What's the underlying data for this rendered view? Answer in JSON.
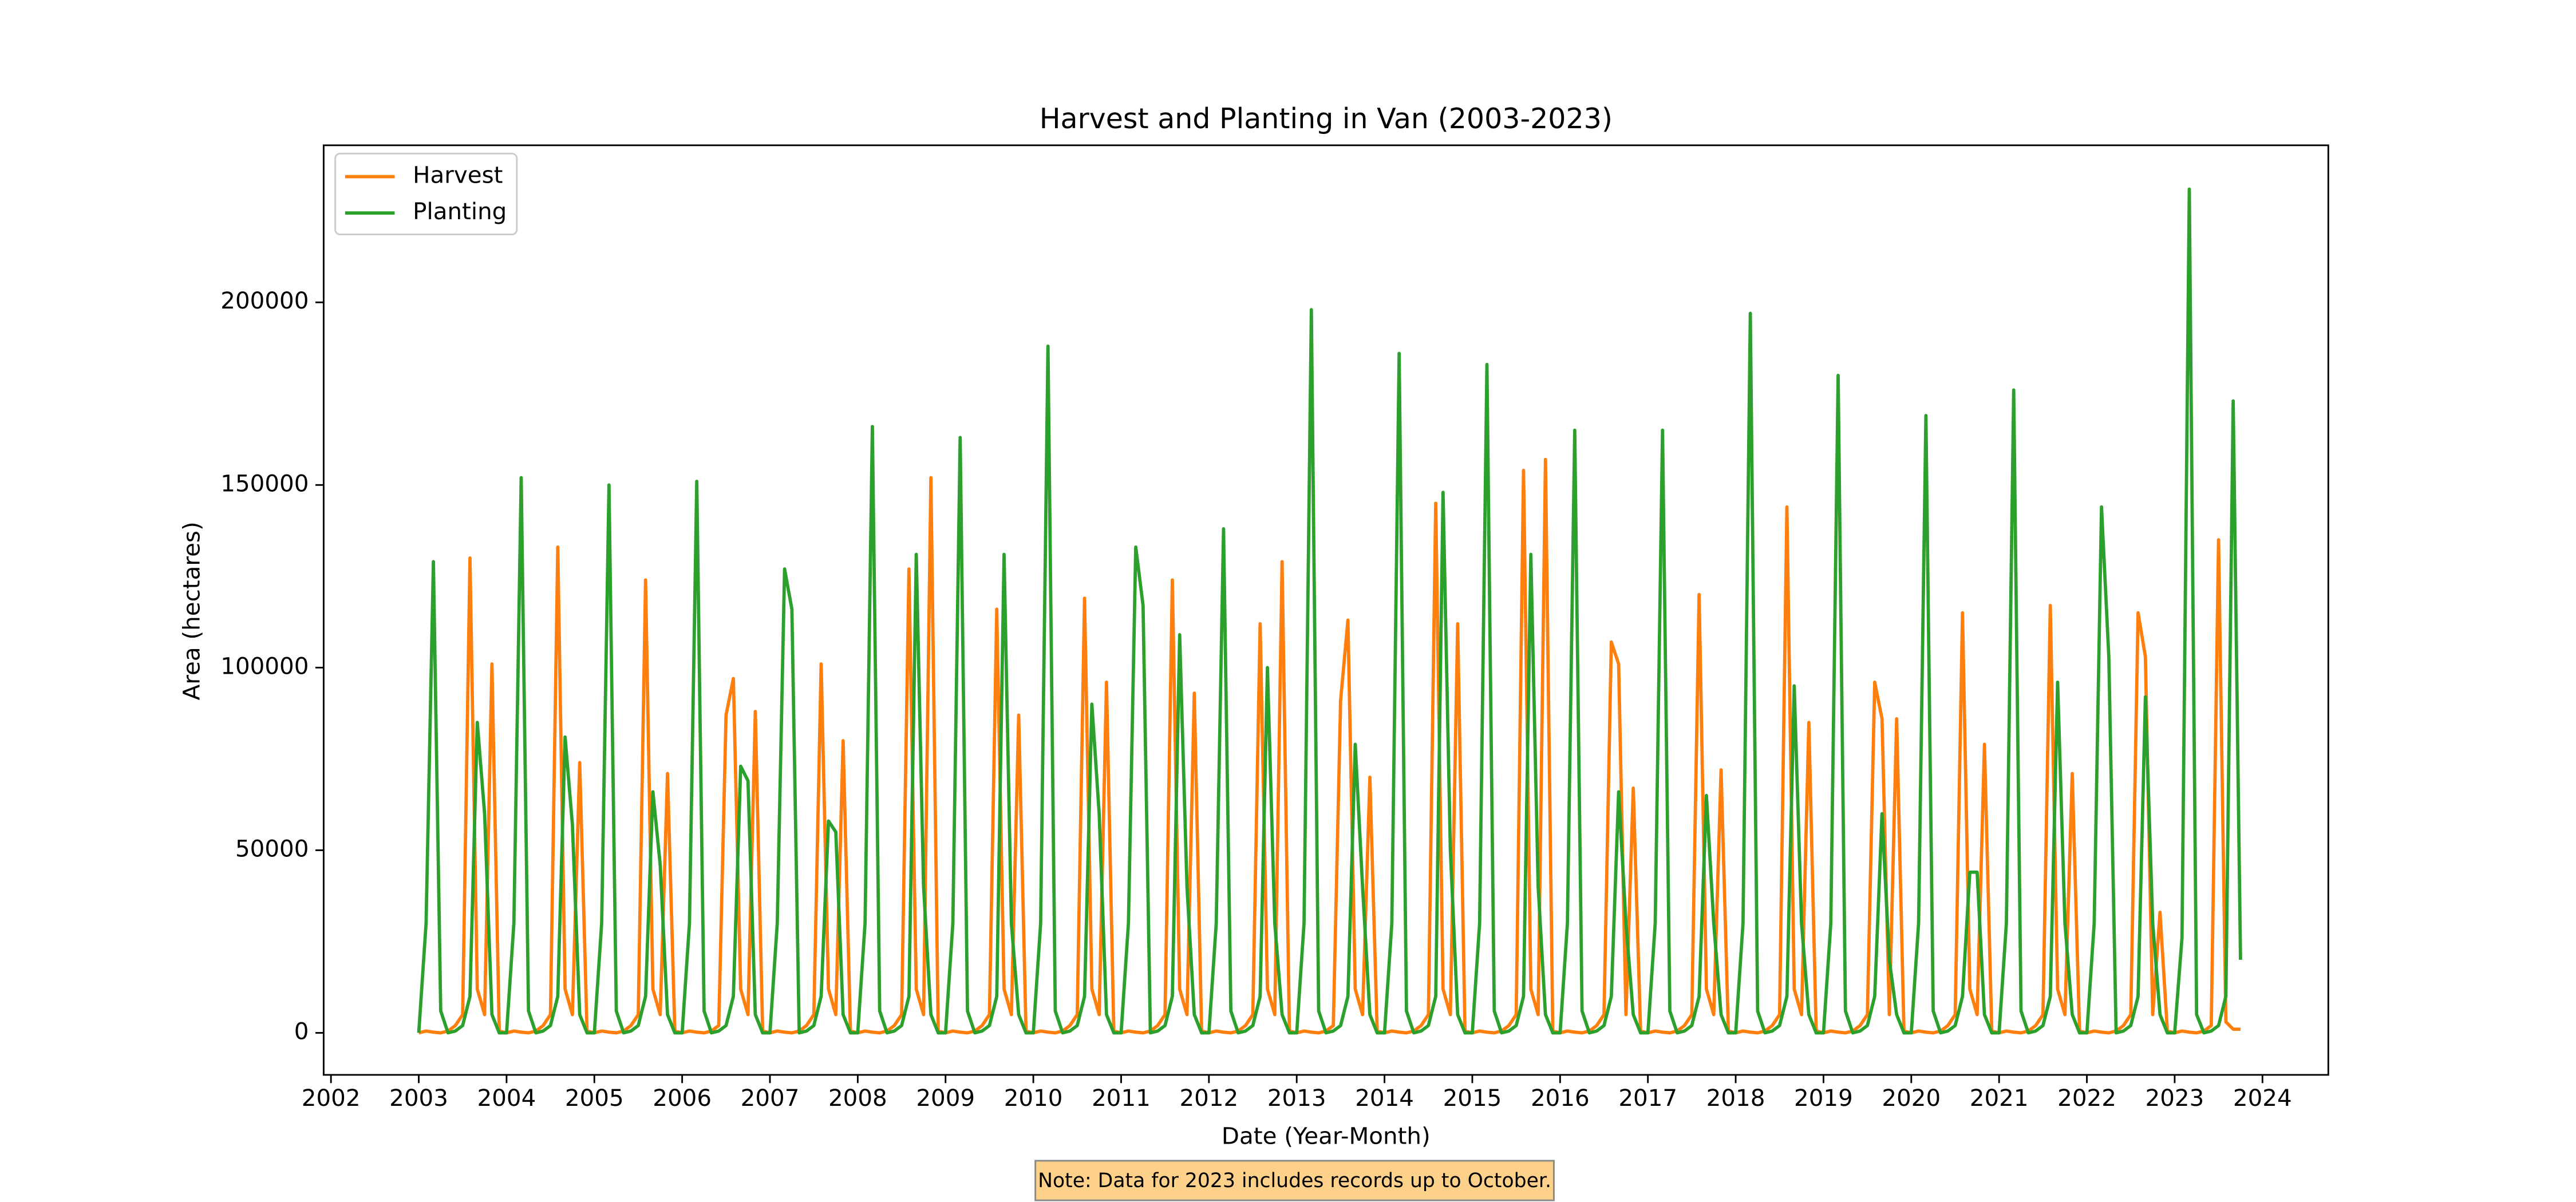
{
  "chart_data": {
    "type": "line",
    "title": "Harvest and Planting in Van (2003-2023)",
    "x_label": "Date (Year-Month)",
    "y_label": "Area (hectares)",
    "note": "Note: Data for 2023 includes records up to October.",
    "legend": "upper left",
    "xlim": [
      "2001-12",
      "2024-10"
    ],
    "xticks": [
      {
        "value": "2002-01",
        "label": "2002"
      },
      {
        "value": "2003-01",
        "label": "2003"
      },
      {
        "value": "2004-01",
        "label": "2004"
      },
      {
        "value": "2005-01",
        "label": "2005"
      },
      {
        "value": "2006-01",
        "label": "2006"
      },
      {
        "value": "2007-01",
        "label": "2007"
      },
      {
        "value": "2008-01",
        "label": "2008"
      },
      {
        "value": "2009-01",
        "label": "2009"
      },
      {
        "value": "2010-01",
        "label": "2010"
      },
      {
        "value": "2011-01",
        "label": "2011"
      },
      {
        "value": "2012-01",
        "label": "2012"
      },
      {
        "value": "2013-01",
        "label": "2013"
      },
      {
        "value": "2014-01",
        "label": "2014"
      },
      {
        "value": "2015-01",
        "label": "2015"
      },
      {
        "value": "2016-01",
        "label": "2016"
      },
      {
        "value": "2017-01",
        "label": "2017"
      },
      {
        "value": "2018-01",
        "label": "2018"
      },
      {
        "value": "2019-01",
        "label": "2019"
      },
      {
        "value": "2020-01",
        "label": "2020"
      },
      {
        "value": "2021-01",
        "label": "2021"
      },
      {
        "value": "2022-01",
        "label": "2022"
      },
      {
        "value": "2023-01",
        "label": "2023"
      },
      {
        "value": "2024-01",
        "label": "2024"
      }
    ],
    "ylim": [
      -11500,
      243000
    ],
    "yticks": [
      0,
      50000,
      100000,
      150000,
      200000
    ],
    "x": [
      "2003-01",
      "2003-02",
      "2003-03",
      "2003-04",
      "2003-05",
      "2003-06",
      "2003-07",
      "2003-08",
      "2003-09",
      "2003-10",
      "2003-11",
      "2003-12",
      "2004-01",
      "2004-02",
      "2004-03",
      "2004-04",
      "2004-05",
      "2004-06",
      "2004-07",
      "2004-08",
      "2004-09",
      "2004-10",
      "2004-11",
      "2004-12",
      "2005-01",
      "2005-02",
      "2005-03",
      "2005-04",
      "2005-05",
      "2005-06",
      "2005-07",
      "2005-08",
      "2005-09",
      "2005-10",
      "2005-11",
      "2005-12",
      "2006-01",
      "2006-02",
      "2006-03",
      "2006-04",
      "2006-05",
      "2006-06",
      "2006-07",
      "2006-08",
      "2006-09",
      "2006-10",
      "2006-11",
      "2006-12",
      "2007-01",
      "2007-02",
      "2007-03",
      "2007-04",
      "2007-05",
      "2007-06",
      "2007-07",
      "2007-08",
      "2007-09",
      "2007-10",
      "2007-11",
      "2007-12",
      "2008-01",
      "2008-02",
      "2008-03",
      "2008-04",
      "2008-05",
      "2008-06",
      "2008-07",
      "2008-08",
      "2008-09",
      "2008-10",
      "2008-11",
      "2008-12",
      "2009-01",
      "2009-02",
      "2009-03",
      "2009-04",
      "2009-05",
      "2009-06",
      "2009-07",
      "2009-08",
      "2009-09",
      "2009-10",
      "2009-11",
      "2009-12",
      "2010-01",
      "2010-02",
      "2010-03",
      "2010-04",
      "2010-05",
      "2010-06",
      "2010-07",
      "2010-08",
      "2010-09",
      "2010-10",
      "2010-11",
      "2010-12",
      "2011-01",
      "2011-02",
      "2011-03",
      "2011-04",
      "2011-05",
      "2011-06",
      "2011-07",
      "2011-08",
      "2011-09",
      "2011-10",
      "2011-11",
      "2011-12",
      "2012-01",
      "2012-02",
      "2012-03",
      "2012-04",
      "2012-05",
      "2012-06",
      "2012-07",
      "2012-08",
      "2012-09",
      "2012-10",
      "2012-11",
      "2012-12",
      "2013-01",
      "2013-02",
      "2013-03",
      "2013-04",
      "2013-05",
      "2013-06",
      "2013-07",
      "2013-08",
      "2013-09",
      "2013-10",
      "2013-11",
      "2013-12",
      "2014-01",
      "2014-02",
      "2014-03",
      "2014-04",
      "2014-05",
      "2014-06",
      "2014-07",
      "2014-08",
      "2014-09",
      "2014-10",
      "2014-11",
      "2014-12",
      "2015-01",
      "2015-02",
      "2015-03",
      "2015-04",
      "2015-05",
      "2015-06",
      "2015-07",
      "2015-08",
      "2015-09",
      "2015-10",
      "2015-11",
      "2015-12",
      "2016-01",
      "2016-02",
      "2016-03",
      "2016-04",
      "2016-05",
      "2016-06",
      "2016-07",
      "2016-08",
      "2016-09",
      "2016-10",
      "2016-11",
      "2016-12",
      "2017-01",
      "2017-02",
      "2017-03",
      "2017-04",
      "2017-05",
      "2017-06",
      "2017-07",
      "2017-08",
      "2017-09",
      "2017-10",
      "2017-11",
      "2017-12",
      "2018-01",
      "2018-02",
      "2018-03",
      "2018-04",
      "2018-05",
      "2018-06",
      "2018-07",
      "2018-08",
      "2018-09",
      "2018-10",
      "2018-11",
      "2018-12",
      "2019-01",
      "2019-02",
      "2019-03",
      "2019-04",
      "2019-05",
      "2019-06",
      "2019-07",
      "2019-08",
      "2019-09",
      "2019-10",
      "2019-11",
      "2019-12",
      "2020-01",
      "2020-02",
      "2020-03",
      "2020-04",
      "2020-05",
      "2020-06",
      "2020-07",
      "2020-08",
      "2020-09",
      "2020-10",
      "2020-11",
      "2020-12",
      "2021-01",
      "2021-02",
      "2021-03",
      "2021-04",
      "2021-05",
      "2021-06",
      "2021-07",
      "2021-08",
      "2021-09",
      "2021-10",
      "2021-11",
      "2021-12",
      "2022-01",
      "2022-02",
      "2022-03",
      "2022-04",
      "2022-05",
      "2022-06",
      "2022-07",
      "2022-08",
      "2022-09",
      "2022-10",
      "2022-11",
      "2022-12",
      "2023-01",
      "2023-02",
      "2023-03",
      "2023-04",
      "2023-05",
      "2023-06",
      "2023-07",
      "2023-08",
      "2023-09",
      "2023-10"
    ],
    "series": [
      {
        "name": "Harvest",
        "color": "#ff7f0e",
        "values": [
          0,
          500,
          200,
          0,
          500,
          2000,
          5000,
          130000,
          12000,
          5000,
          101000,
          500,
          0,
          500,
          200,
          0,
          500,
          2000,
          5000,
          133000,
          12000,
          5000,
          74000,
          500,
          0,
          500,
          200,
          0,
          500,
          2000,
          5000,
          124000,
          12000,
          5000,
          71000,
          500,
          0,
          500,
          200,
          0,
          500,
          2000,
          87000,
          97000,
          12000,
          5000,
          88000,
          500,
          0,
          500,
          200,
          0,
          500,
          2000,
          5000,
          101000,
          12000,
          5000,
          80000,
          500,
          0,
          500,
          200,
          0,
          500,
          2000,
          5000,
          127000,
          12000,
          5000,
          152000,
          500,
          0,
          500,
          200,
          0,
          500,
          2000,
          5000,
          116000,
          12000,
          5000,
          87000,
          500,
          0,
          500,
          200,
          0,
          500,
          2000,
          5000,
          119000,
          12000,
          5000,
          96000,
          500,
          0,
          500,
          200,
          0,
          500,
          2000,
          5000,
          124000,
          12000,
          5000,
          93000,
          500,
          0,
          500,
          200,
          0,
          500,
          2000,
          5000,
          112000,
          12000,
          5000,
          129000,
          500,
          0,
          500,
          200,
          0,
          500,
          2000,
          91000,
          113000,
          12000,
          5000,
          70000,
          500,
          0,
          500,
          200,
          0,
          500,
          2000,
          5000,
          145000,
          12000,
          5000,
          112000,
          500,
          0,
          500,
          200,
          0,
          500,
          2000,
          5000,
          154000,
          12000,
          5000,
          157000,
          500,
          0,
          500,
          200,
          0,
          500,
          2000,
          5000,
          107000,
          101000,
          5000,
          67000,
          500,
          0,
          500,
          200,
          0,
          500,
          2000,
          5000,
          120000,
          12000,
          5000,
          72000,
          500,
          0,
          500,
          200,
          0,
          500,
          2000,
          5000,
          144000,
          12000,
          5000,
          85000,
          500,
          0,
          500,
          200,
          0,
          500,
          2000,
          5000,
          96000,
          86000,
          5000,
          86000,
          500,
          0,
          500,
          200,
          0,
          500,
          2000,
          5000,
          115000,
          12000,
          5000,
          79000,
          500,
          0,
          500,
          200,
          0,
          500,
          2000,
          5000,
          117000,
          12000,
          5000,
          71000,
          500,
          0,
          500,
          200,
          0,
          500,
          2000,
          5000,
          115000,
          103000,
          5000,
          33000,
          500,
          0,
          500,
          200,
          0,
          500,
          2000,
          135000,
          3000,
          1000,
          1000
        ]
      },
      {
        "name": "Planting",
        "color": "#2ca02c",
        "values": [
          0,
          30000,
          129000,
          6000,
          0,
          500,
          2000,
          10000,
          85000,
          60000,
          5000,
          0,
          0,
          30000,
          152000,
          6000,
          0,
          500,
          2000,
          10000,
          81000,
          57000,
          5000,
          0,
          0,
          30000,
          150000,
          6000,
          0,
          500,
          2000,
          10000,
          66000,
          46000,
          5000,
          0,
          0,
          30000,
          151000,
          6000,
          0,
          500,
          2000,
          10000,
          73000,
          69000,
          5000,
          0,
          0,
          30000,
          127000,
          116000,
          0,
          500,
          2000,
          10000,
          58000,
          55000,
          5000,
          0,
          0,
          30000,
          166000,
          6000,
          0,
          500,
          2000,
          10000,
          131000,
          40000,
          5000,
          0,
          0,
          30000,
          163000,
          6000,
          0,
          500,
          2000,
          10000,
          131000,
          30000,
          5000,
          0,
          0,
          30000,
          188000,
          6000,
          0,
          500,
          2000,
          10000,
          90000,
          60000,
          5000,
          0,
          0,
          30000,
          133000,
          117000,
          0,
          500,
          2000,
          10000,
          109000,
          40000,
          5000,
          0,
          0,
          30000,
          138000,
          6000,
          0,
          500,
          2000,
          10000,
          100000,
          30000,
          5000,
          0,
          0,
          30000,
          198000,
          6000,
          0,
          500,
          2000,
          10000,
          79000,
          40000,
          5000,
          0,
          0,
          30000,
          186000,
          6000,
          0,
          500,
          2000,
          10000,
          148000,
          50000,
          5000,
          0,
          0,
          30000,
          183000,
          6000,
          0,
          500,
          2000,
          10000,
          131000,
          40000,
          5000,
          0,
          0,
          30000,
          165000,
          6000,
          0,
          500,
          2000,
          10000,
          66000,
          30000,
          5000,
          0,
          0,
          30000,
          165000,
          6000,
          0,
          500,
          2000,
          10000,
          65000,
          30000,
          5000,
          0,
          0,
          30000,
          197000,
          6000,
          0,
          500,
          2000,
          10000,
          95000,
          30000,
          5000,
          0,
          0,
          30000,
          180000,
          6000,
          0,
          500,
          2000,
          10000,
          60000,
          20000,
          5000,
          0,
          0,
          30000,
          169000,
          6000,
          0,
          500,
          2000,
          10000,
          44000,
          44000,
          5000,
          0,
          0,
          30000,
          176000,
          6000,
          0,
          500,
          2000,
          10000,
          96000,
          30000,
          5000,
          0,
          0,
          30000,
          144000,
          103000,
          0,
          500,
          2000,
          10000,
          92000,
          30000,
          5000,
          0,
          0,
          26000,
          231000,
          5000,
          0,
          500,
          2000,
          10000,
          173000,
          20000
        ]
      }
    ]
  }
}
